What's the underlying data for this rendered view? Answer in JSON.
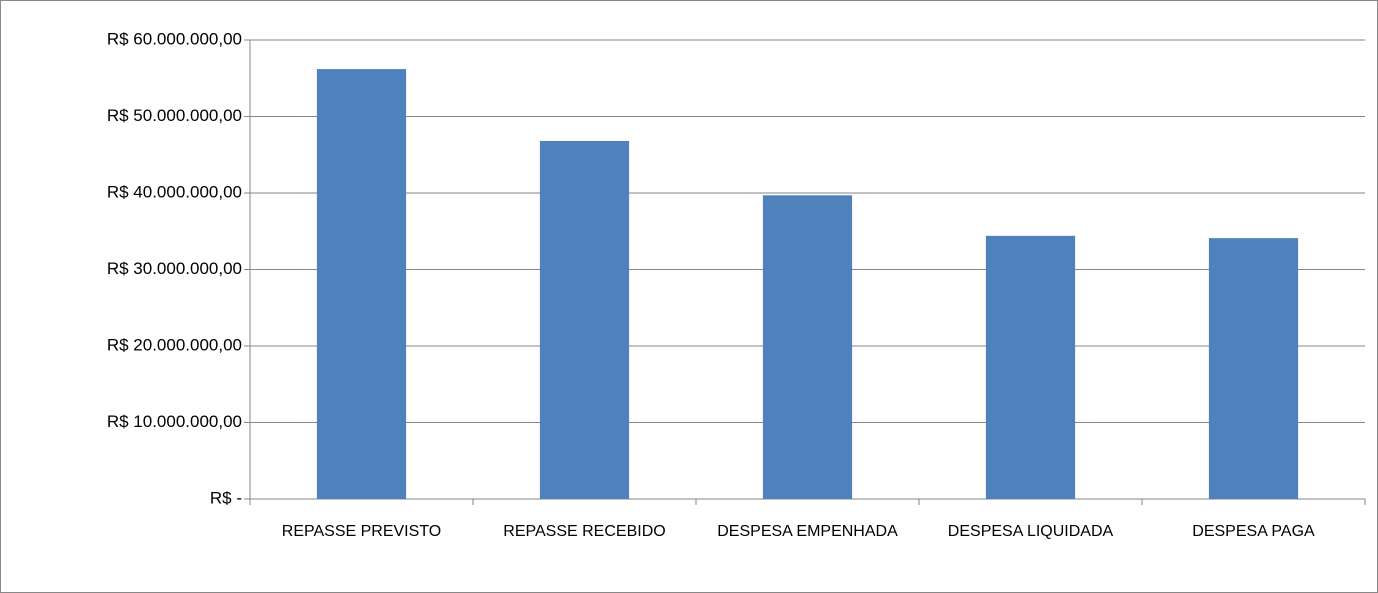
{
  "chart_data": {
    "type": "bar",
    "categories": [
      "REPASSE PREVISTO",
      "REPASSE RECEBIDO",
      "DESPESA EMPENHADA",
      "DESPESA LIQUIDADA",
      "DESPESA PAGA"
    ],
    "values": [
      56200000,
      46800000,
      39700000,
      34400000,
      34100000
    ],
    "color": "#4f81bd",
    "ylim": [
      0,
      60000000
    ],
    "yticks": [
      {
        "value": 0,
        "label": "R$ -"
      },
      {
        "value": 10000000,
        "label": "R$ 10.000.000,00"
      },
      {
        "value": 20000000,
        "label": "R$ 20.000.000,00"
      },
      {
        "value": 30000000,
        "label": "R$ 30.000.000,00"
      },
      {
        "value": 40000000,
        "label": "R$ 40.000.000,00"
      },
      {
        "value": 50000000,
        "label": "R$ 50.000.000,00"
      },
      {
        "value": 60000000,
        "label": "R$ 60.000.000,00"
      }
    ],
    "grid": true
  }
}
